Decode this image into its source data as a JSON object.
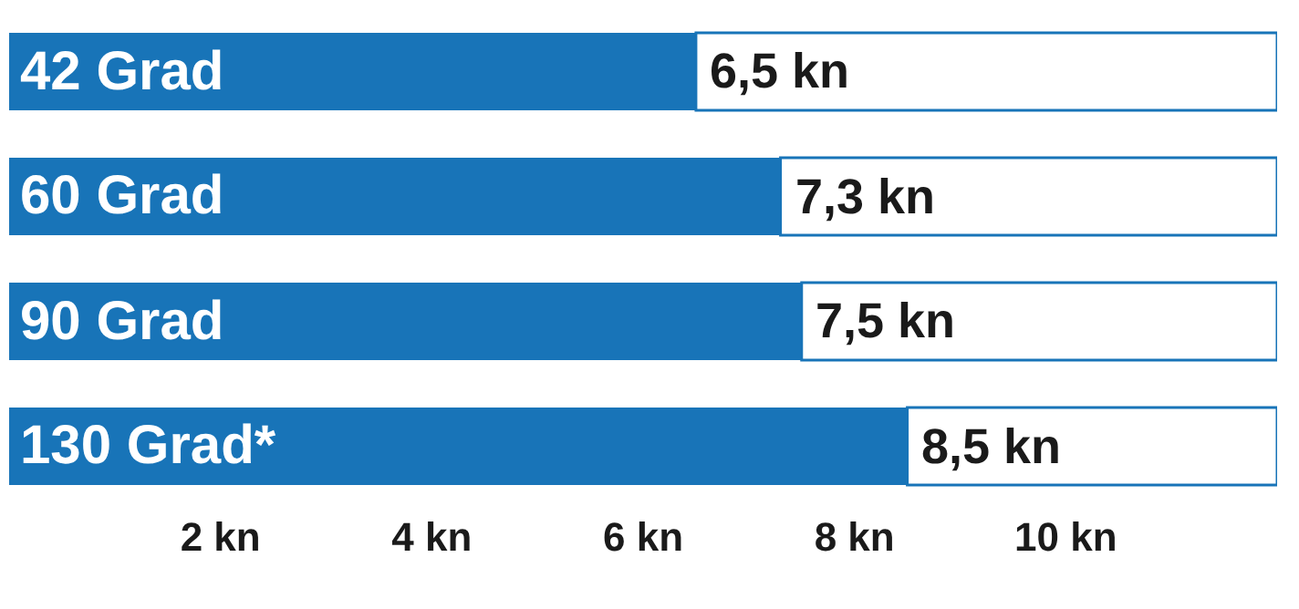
{
  "chart_data": {
    "type": "bar",
    "orientation": "horizontal",
    "stacked": true,
    "categories": [
      "42 Grad",
      "60 Grad",
      "90 Grad",
      "130 Grad*"
    ],
    "series": [
      {
        "color": "#1874b8",
        "values": [
          6.5,
          7.3,
          7.5,
          8.5
        ],
        "value_labels": [
          "6,5 kn",
          "7,3 kn",
          "7,5 kn",
          "8,5 kn"
        ]
      },
      {
        "color": "#ffffff",
        "values": [
          5.5,
          4.7,
          4.5,
          3.5
        ]
      }
    ],
    "xlim": [
      0,
      12
    ],
    "xticks": [
      {
        "value": 2,
        "label": "2 kn"
      },
      {
        "value": 4,
        "label": "4 kn"
      },
      {
        "value": 6,
        "label": "6 kn"
      },
      {
        "value": 8,
        "label": "8 kn"
      },
      {
        "value": 10,
        "label": "10 kn"
      }
    ],
    "grid": false
  }
}
